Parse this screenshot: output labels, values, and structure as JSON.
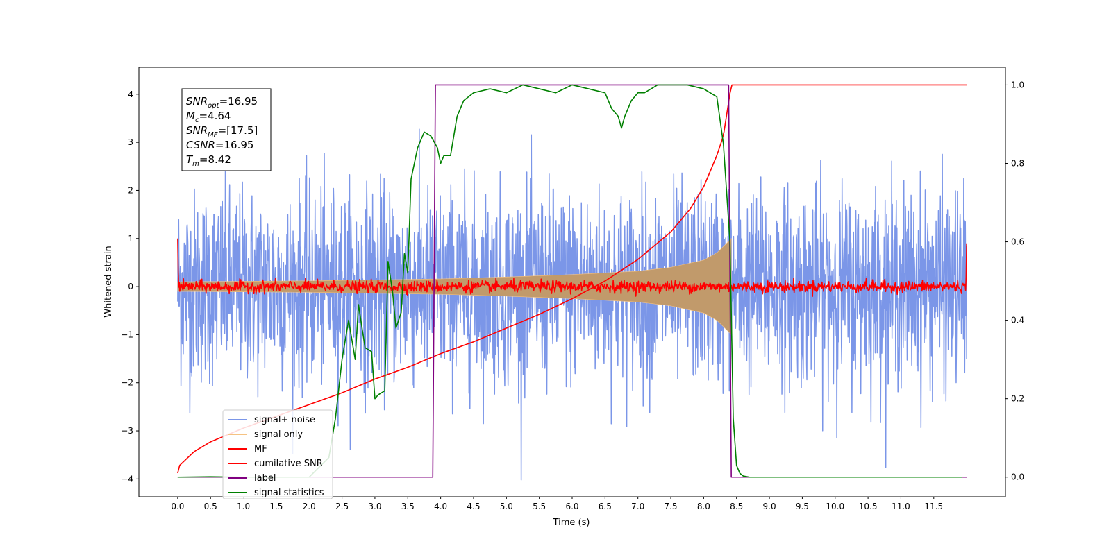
{
  "chart_data": {
    "type": "line",
    "xlabel": "Time (s)",
    "ylabel": "Whitened strain",
    "xlim": [
      -0.59,
      12.59
    ],
    "ylim_left": [
      -4.37,
      4.56
    ],
    "ylim_right": [
      -0.05,
      1.045
    ],
    "x_ticks": [
      0.0,
      0.5,
      1.0,
      1.5,
      2.0,
      2.5,
      3.0,
      3.5,
      4.0,
      4.5,
      5.0,
      5.5,
      6.0,
      6.5,
      7.0,
      7.5,
      8.0,
      8.5,
      9.0,
      9.5,
      10.0,
      10.5,
      11.0,
      11.5
    ],
    "x_tick_labels": [
      "0.0",
      "0.5",
      "1.0",
      "1.5",
      "2.0",
      "2.5",
      "3.0",
      "3.5",
      "4.0",
      "4.5",
      "5.0",
      "5.5",
      "6.0",
      "6.5",
      "7.0",
      "7.5",
      "8.0",
      "8.5",
      "9.0",
      "9.5",
      "10.0",
      "10.5",
      "11.0",
      "11.5"
    ],
    "y_left_ticks": [
      -4,
      -3,
      -2,
      -1,
      0,
      1,
      2,
      3,
      4
    ],
    "y_left_tick_labels": [
      "−4",
      "−3",
      "−2",
      "−1",
      "0",
      "1",
      "2",
      "3",
      "4"
    ],
    "y_right_ticks": [
      0.0,
      0.2,
      0.4,
      0.6,
      0.8,
      1.0
    ],
    "y_right_tick_labels": [
      "0.0",
      "0.2",
      "0.4",
      "0.6",
      "0.8",
      "1.0"
    ],
    "grid": false,
    "legend_position": "lower-left",
    "annotation": {
      "lines": [
        {
          "base": "SNR",
          "sub": "opt",
          "value": "=16.95"
        },
        {
          "base": "M",
          "sub": "c",
          "value": "=4.64"
        },
        {
          "base": "SNR",
          "sub": "MF",
          "value": "=[17.5]"
        },
        {
          "base": "CSNR",
          "sub": "",
          "value": "=16.95"
        },
        {
          "base": "T",
          "sub": "m",
          "value": "=8.42"
        }
      ]
    },
    "legend": [
      {
        "label": "signal+ noise",
        "color": "#7b96e8"
      },
      {
        "label": "signal only",
        "color": "#f5c282"
      },
      {
        "label": "MF",
        "color": "#ff0000"
      },
      {
        "label": "cumilative SNR",
        "color": "#ff0000"
      },
      {
        "label": "label",
        "color": "#800080"
      },
      {
        "label": "signal statistics",
        "color": "#008000"
      }
    ],
    "series": [
      {
        "name": "signal+ noise",
        "axis": "left",
        "color": "#7b96e8",
        "kind": "noise_band",
        "x_range": [
          0.0,
          12.0
        ],
        "std": 1.0,
        "max_abs": 4.1
      },
      {
        "name": "signal only",
        "axis": "left",
        "color": "#c19a6b",
        "kind": "chirp_envelope",
        "x_range": [
          0.0,
          8.42
        ],
        "x": [
          0.0,
          2.0,
          4.0,
          5.0,
          6.0,
          7.0,
          7.5,
          8.0,
          8.2,
          8.35,
          8.42
        ],
        "amplitude": [
          0.1,
          0.12,
          0.16,
          0.2,
          0.25,
          0.32,
          0.4,
          0.55,
          0.7,
          0.9,
          1.0
        ]
      },
      {
        "name": "MF",
        "axis": "left",
        "color": "#ff0000",
        "kind": "noise_line",
        "x_range": [
          0.0,
          12.0
        ],
        "std": 0.06,
        "edge_values": {
          "start": 1.0,
          "end": 0.9
        }
      },
      {
        "name": "cumilative SNR",
        "axis": "right",
        "color": "#ff0000",
        "x": [
          0.0,
          0.03,
          0.25,
          0.5,
          1.0,
          1.5,
          2.0,
          2.5,
          3.0,
          3.5,
          4.0,
          4.5,
          5.0,
          5.5,
          6.0,
          6.5,
          7.0,
          7.5,
          7.8,
          8.0,
          8.2,
          8.3,
          8.42,
          12.0
        ],
        "y": [
          0.01,
          0.03,
          0.065,
          0.09,
          0.125,
          0.155,
          0.185,
          0.215,
          0.25,
          0.28,
          0.315,
          0.345,
          0.38,
          0.415,
          0.455,
          0.5,
          0.555,
          0.625,
          0.685,
          0.74,
          0.82,
          0.87,
          1.0,
          1.0
        ]
      },
      {
        "name": "label",
        "axis": "right",
        "color": "#800080",
        "x": [
          0.0,
          3.88,
          3.92,
          8.38,
          8.42,
          12.0
        ],
        "y": [
          0.0,
          0.0,
          1.0,
          1.0,
          0.0,
          0.0
        ]
      },
      {
        "name": "signal statistics",
        "axis": "right",
        "color": "#008000",
        "x": [
          0.0,
          0.5,
          1.0,
          1.5,
          2.0,
          2.3,
          2.4,
          2.5,
          2.6,
          2.7,
          2.75,
          2.85,
          2.95,
          3.0,
          3.05,
          3.15,
          3.2,
          3.27,
          3.32,
          3.4,
          3.45,
          3.5,
          3.55,
          3.65,
          3.75,
          3.85,
          3.95,
          4.0,
          4.05,
          4.15,
          4.25,
          4.35,
          4.5,
          4.75,
          5.0,
          5.25,
          5.5,
          5.75,
          6.0,
          6.25,
          6.5,
          6.6,
          6.7,
          6.75,
          6.8,
          6.9,
          7.0,
          7.1,
          7.2,
          7.3,
          7.5,
          7.75,
          8.0,
          8.2,
          8.3,
          8.4,
          8.45,
          8.5,
          8.55,
          8.6,
          8.7,
          9.0,
          10.0,
          11.0,
          11.0,
          11.93
        ],
        "y": [
          0.0,
          0.001,
          0.0,
          0.0,
          0.0,
          0.05,
          0.15,
          0.3,
          0.4,
          0.3,
          0.44,
          0.33,
          0.32,
          0.2,
          0.21,
          0.22,
          0.55,
          0.47,
          0.38,
          0.42,
          0.57,
          0.52,
          0.76,
          0.84,
          0.88,
          0.87,
          0.84,
          0.8,
          0.82,
          0.82,
          0.92,
          0.96,
          0.98,
          0.99,
          0.98,
          1.0,
          0.99,
          0.98,
          1.0,
          0.99,
          0.98,
          0.94,
          0.92,
          0.89,
          0.92,
          0.96,
          0.98,
          0.98,
          0.99,
          1.0,
          1.0,
          1.0,
          0.99,
          0.97,
          0.85,
          0.6,
          0.15,
          0.03,
          0.01,
          0.003,
          0.0,
          0.0,
          0.0,
          0.0,
          0.0,
          0.0
        ]
      }
    ]
  }
}
